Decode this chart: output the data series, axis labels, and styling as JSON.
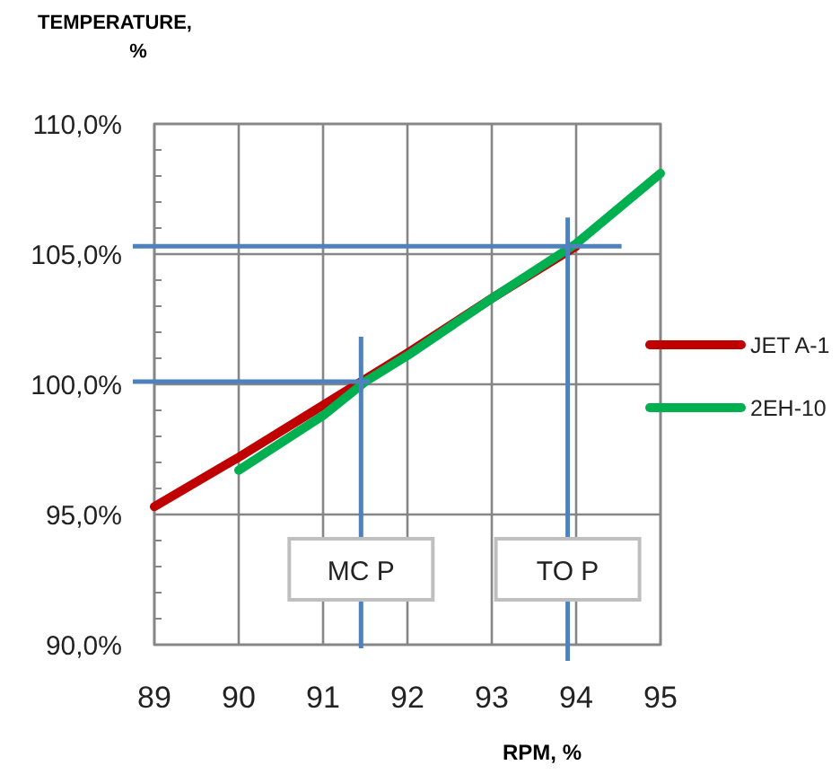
{
  "chart_data": {
    "type": "line",
    "xlabel": "RPM, %",
    "ylabel": "TEMPERATURE, %",
    "xlim": [
      89,
      95
    ],
    "xticks": [
      89,
      90,
      91,
      92,
      93,
      94,
      95
    ],
    "ylim": [
      90,
      110
    ],
    "yticks": [
      {
        "value": 90,
        "label": "90,0%"
      },
      {
        "value": 91,
        "label": null
      },
      {
        "value": 92,
        "label": null
      },
      {
        "value": 93,
        "label": null
      },
      {
        "value": 94,
        "label": null
      },
      {
        "value": 95,
        "label": "95,0%"
      },
      {
        "value": 96,
        "label": null
      },
      {
        "value": 97,
        "label": null
      },
      {
        "value": 98,
        "label": null
      },
      {
        "value": 99,
        "label": null
      },
      {
        "value": 100,
        "label": "100,0%"
      },
      {
        "value": 101,
        "label": null
      },
      {
        "value": 102,
        "label": null
      },
      {
        "value": 103,
        "label": null
      },
      {
        "value": 104,
        "label": null
      },
      {
        "value": 105,
        "label": "105,0%"
      },
      {
        "value": 106,
        "label": null
      },
      {
        "value": 107,
        "label": null
      },
      {
        "value": 108,
        "label": null
      },
      {
        "value": 109,
        "label": null
      },
      {
        "value": 110,
        "label": "110,0%"
      }
    ],
    "grid": true,
    "legend": "right",
    "marker": "none",
    "line_style": "solid",
    "series": [
      {
        "name": "JET A-1",
        "color": "#c00000",
        "x": [
          89,
          90,
          91,
          91.5,
          92,
          93,
          94
        ],
        "values": [
          95.3,
          97.2,
          99.2,
          100.2,
          101.2,
          103.3,
          105.3
        ]
      },
      {
        "name": "2EH-10",
        "color": "#00b050",
        "x": [
          90,
          91,
          91.5,
          92,
          93,
          94,
          95
        ],
        "values": [
          96.7,
          98.8,
          100.1,
          101.1,
          103.3,
          105.4,
          108.1
        ]
      }
    ],
    "ref_lines": [
      {
        "axis": "y",
        "value": 105.3,
        "color": "#4f81bd"
      },
      {
        "axis": "x",
        "value": 93.9,
        "label": "TO P",
        "color": "#4f81bd"
      },
      {
        "axis": "y",
        "value": 100.1,
        "color": "#4f81bd"
      },
      {
        "axis": "x",
        "value": 91.45,
        "label": "MC P",
        "color": "#4f81bd"
      }
    ]
  }
}
